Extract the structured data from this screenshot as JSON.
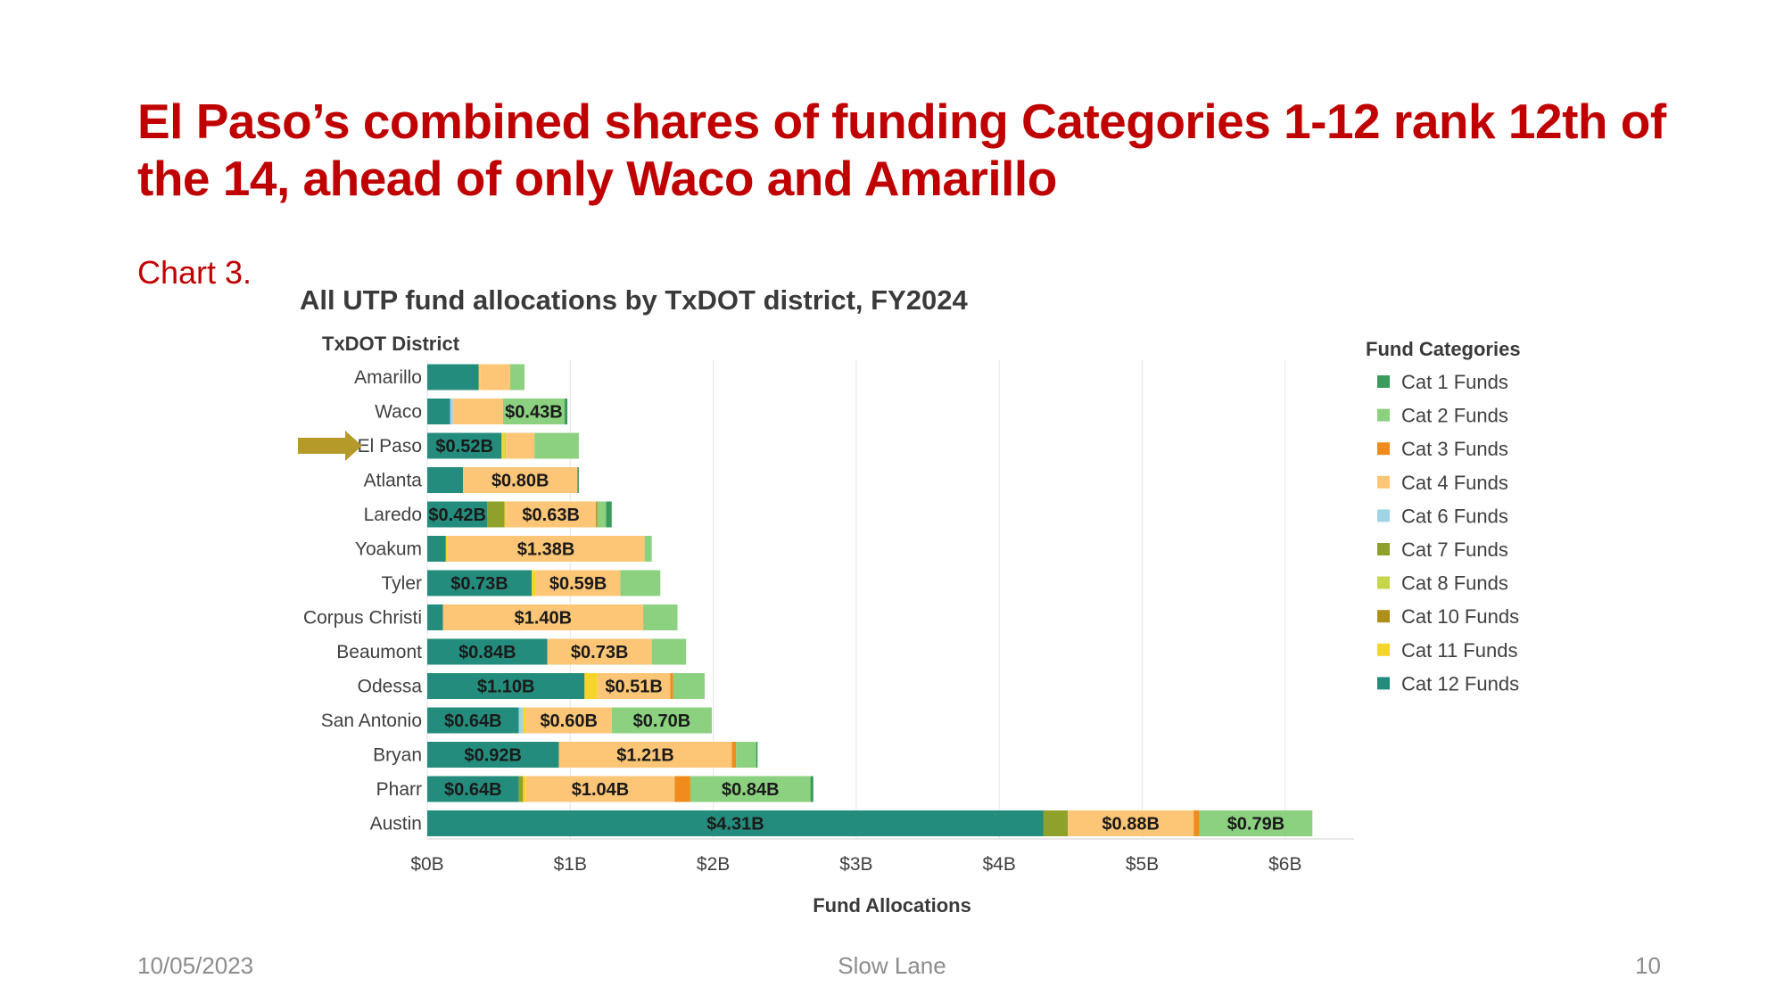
{
  "slide": {
    "title": "El Paso’s combined shares of funding Categories 1-12 rank 12th of the 14, ahead of only Waco and Amarillo",
    "chart_label": "Chart 3.",
    "footer_date": "10/05/2023",
    "footer_center": "Slow Lane",
    "page_number": "10"
  },
  "highlight": {
    "category": "El Paso",
    "arrow_color": "#b59a2a"
  },
  "colors": {
    "Cat 1 Funds": "#3a9b5c",
    "Cat 2 Funds": "#8bd17f",
    "Cat 3 Funds": "#f08c1c",
    "Cat 4 Funds": "#fdc576",
    "Cat 6 Funds": "#9fd4e6",
    "Cat 7 Funds": "#8fa12a",
    "Cat 8 Funds": "#c6d549",
    "Cat 10 Funds": "#b08f16",
    "Cat 11 Funds": "#f6d52b",
    "Cat 12 Funds": "#248c7c"
  },
  "chart_data": {
    "type": "bar",
    "orientation": "horizontal",
    "stacked": true,
    "title": "All UTP fund allocations by TxDOT district, FY2024",
    "ylabel": "TxDOT District",
    "xlabel": "Fund Allocations",
    "xlim": [
      0,
      6.5
    ],
    "xticks": [
      0,
      1,
      2,
      3,
      4,
      5,
      6
    ],
    "xtick_labels": [
      "$0B",
      "$1B",
      "$2B",
      "$3B",
      "$4B",
      "$5B",
      "$6B"
    ],
    "grid": true,
    "legend_title": "Fund Categories",
    "legend_position": "right",
    "legend": [
      "Cat 1 Funds",
      "Cat 2 Funds",
      "Cat 3 Funds",
      "Cat 4 Funds",
      "Cat 6 Funds",
      "Cat 7 Funds",
      "Cat 8 Funds",
      "Cat 10 Funds",
      "Cat 11 Funds",
      "Cat 12 Funds"
    ],
    "categories": [
      "Amarillo",
      "Waco",
      "El Paso",
      "Atlanta",
      "Laredo",
      "Yoakum",
      "Tyler",
      "Corpus Christi",
      "Beaumont",
      "Odessa",
      "San Antonio",
      "Bryan",
      "Pharr",
      "Austin"
    ],
    "series": [
      {
        "name": "Cat 12 Funds",
        "values": [
          0.36,
          0.16,
          0.52,
          0.25,
          0.42,
          0.13,
          0.73,
          0.11,
          0.84,
          1.1,
          0.64,
          0.92,
          0.64,
          4.31
        ]
      },
      {
        "name": "Cat 7 Funds",
        "values": [
          0.0,
          0.0,
          0.0,
          0.0,
          0.12,
          0.0,
          0.0,
          0.0,
          0.0,
          0.0,
          0.0,
          0.0,
          0.03,
          0.17
        ]
      },
      {
        "name": "Cat 6 Funds",
        "values": [
          0.0,
          0.02,
          0.0,
          0.0,
          0.0,
          0.0,
          0.0,
          0.0,
          0.0,
          0.0,
          0.03,
          0.0,
          0.0,
          0.0
        ]
      },
      {
        "name": "Cat 11 Funds",
        "values": [
          0.01,
          0.0,
          0.02,
          0.0,
          0.01,
          0.01,
          0.03,
          0.0,
          0.0,
          0.09,
          0.02,
          0.0,
          0.02,
          0.0
        ]
      },
      {
        "name": "Cat 8 Funds",
        "values": [
          0.0,
          0.0,
          0.01,
          0.0,
          0.0,
          0.0,
          0.0,
          0.0,
          0.0,
          0.0,
          0.0,
          0.0,
          0.0,
          0.0
        ]
      },
      {
        "name": "Cat 4 Funds",
        "values": [
          0.21,
          0.35,
          0.2,
          0.8,
          0.63,
          1.38,
          0.59,
          1.4,
          0.73,
          0.51,
          0.6,
          1.21,
          1.04,
          0.88
        ]
      },
      {
        "name": "Cat 10 Funds",
        "values": [
          0.0,
          0.0,
          0.0,
          0.0,
          0.01,
          0.0,
          0.0,
          0.0,
          0.0,
          0.0,
          0.0,
          0.0,
          0.0,
          0.0
        ]
      },
      {
        "name": "Cat 3 Funds",
        "values": [
          0.0,
          0.0,
          0.0,
          0.0,
          0.0,
          0.0,
          0.0,
          0.0,
          0.0,
          0.02,
          0.0,
          0.03,
          0.11,
          0.04
        ]
      },
      {
        "name": "Cat 2 Funds",
        "values": [
          0.1,
          0.43,
          0.31,
          0.0,
          0.06,
          0.05,
          0.28,
          0.24,
          0.24,
          0.22,
          0.7,
          0.14,
          0.84,
          0.79
        ]
      },
      {
        "name": "Cat 1 Funds",
        "values": [
          0.0,
          0.02,
          0.0,
          0.01,
          0.04,
          0.0,
          0.0,
          0.0,
          0.0,
          0.0,
          0.0,
          0.01,
          0.02,
          0.0
        ]
      }
    ],
    "data_labels": [
      {
        "category": "Waco",
        "series": "Cat 2 Funds",
        "text": "$0.43B"
      },
      {
        "category": "El Paso",
        "series": "Cat 12 Funds",
        "text": "$0.52B"
      },
      {
        "category": "Atlanta",
        "series": "Cat 4 Funds",
        "text": "$0.80B"
      },
      {
        "category": "Laredo",
        "series": "Cat 12 Funds",
        "text": "$0.42B"
      },
      {
        "category": "Laredo",
        "series": "Cat 4 Funds",
        "text": "$0.63B"
      },
      {
        "category": "Yoakum",
        "series": "Cat 4 Funds",
        "text": "$1.38B"
      },
      {
        "category": "Tyler",
        "series": "Cat 12 Funds",
        "text": "$0.73B"
      },
      {
        "category": "Tyler",
        "series": "Cat 4 Funds",
        "text": "$0.59B"
      },
      {
        "category": "Corpus Christi",
        "series": "Cat 4 Funds",
        "text": "$1.40B"
      },
      {
        "category": "Beaumont",
        "series": "Cat 12 Funds",
        "text": "$0.84B"
      },
      {
        "category": "Beaumont",
        "series": "Cat 4 Funds",
        "text": "$0.73B"
      },
      {
        "category": "Odessa",
        "series": "Cat 12 Funds",
        "text": "$1.10B"
      },
      {
        "category": "Odessa",
        "series": "Cat 4 Funds",
        "text": "$0.51B"
      },
      {
        "category": "San Antonio",
        "series": "Cat 12 Funds",
        "text": "$0.64B"
      },
      {
        "category": "San Antonio",
        "series": "Cat 4 Funds",
        "text": "$0.60B"
      },
      {
        "category": "San Antonio",
        "series": "Cat 2 Funds",
        "text": "$0.70B"
      },
      {
        "category": "Bryan",
        "series": "Cat 12 Funds",
        "text": "$0.92B"
      },
      {
        "category": "Bryan",
        "series": "Cat 4 Funds",
        "text": "$1.21B"
      },
      {
        "category": "Pharr",
        "series": "Cat 12 Funds",
        "text": "$0.64B"
      },
      {
        "category": "Pharr",
        "series": "Cat 4 Funds",
        "text": "$1.04B"
      },
      {
        "category": "Pharr",
        "series": "Cat 2 Funds",
        "text": "$0.84B"
      },
      {
        "category": "Austin",
        "series": "Cat 12 Funds",
        "text": "$4.31B"
      },
      {
        "category": "Austin",
        "series": "Cat 4 Funds",
        "text": "$0.88B"
      },
      {
        "category": "Austin",
        "series": "Cat 2 Funds",
        "text": "$0.79B"
      }
    ]
  }
}
